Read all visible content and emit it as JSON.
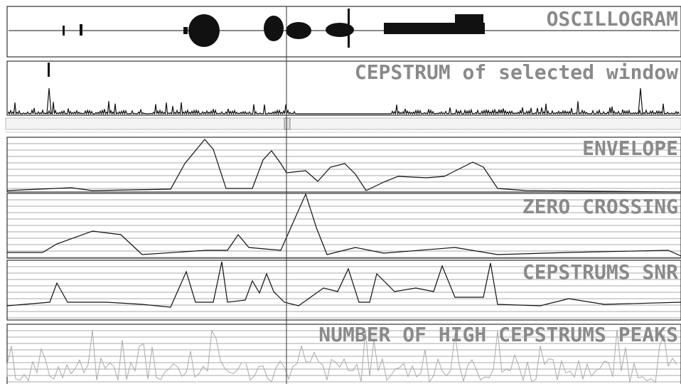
{
  "panels": [
    {
      "title": "OSCILLOGRAM"
    },
    {
      "title": "CEPSTRUM of selected window"
    },
    {
      "title": "ENVELOPE"
    },
    {
      "title": "ZERO CROSSING"
    },
    {
      "title": "CEPSTRUMS SNR"
    },
    {
      "title": "NUMBER OF HIGH CEPSTRUMS PEAKS"
    }
  ]
}
